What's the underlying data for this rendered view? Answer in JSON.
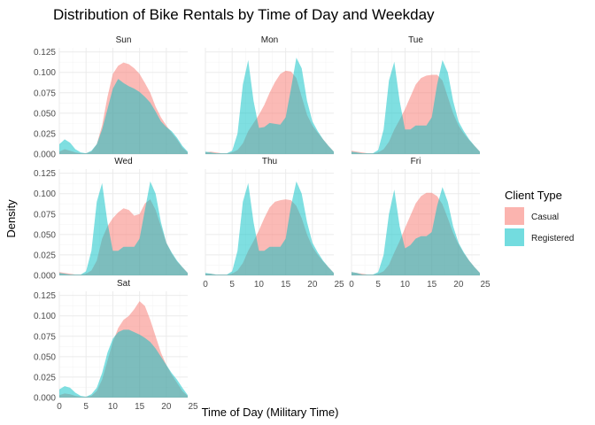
{
  "chart_data": {
    "type": "area",
    "title": "Distribution of Bike Rentals by Time of Day and Weekday",
    "xlabel": "Time of Day (Military Time)",
    "ylabel": "Density",
    "xlim": [
      0,
      24
    ],
    "ylim": [
      0,
      0.13
    ],
    "x_ticks": [
      0,
      5,
      10,
      15,
      20,
      25
    ],
    "y_ticks": [
      0.0,
      0.025,
      0.05,
      0.075,
      0.1,
      0.125
    ],
    "y_tick_labels": [
      "0.000",
      "0.025",
      "0.050",
      "0.075",
      "0.100",
      "0.125"
    ],
    "grid": true,
    "legend": {
      "title": "Client Type",
      "position": "right",
      "entries": [
        {
          "name": "Casual",
          "color": "#F8766D"
        },
        {
          "name": "Registered",
          "color": "#00BFC4"
        }
      ]
    },
    "x": [
      0,
      1,
      2,
      3,
      4,
      5,
      6,
      7,
      8,
      9,
      10,
      11,
      12,
      13,
      14,
      15,
      16,
      17,
      18,
      19,
      20,
      21,
      22,
      23,
      24
    ],
    "panels": [
      {
        "name": "Sun",
        "series": [
          {
            "name": "Casual",
            "values": [
              0.003,
              0.006,
              0.004,
              0.002,
              0.001,
              0.001,
              0.003,
              0.012,
              0.035,
              0.07,
              0.098,
              0.108,
              0.112,
              0.11,
              0.105,
              0.098,
              0.087,
              0.075,
              0.058,
              0.045,
              0.035,
              0.026,
              0.018,
              0.008,
              0.002
            ]
          },
          {
            "name": "Registered",
            "values": [
              0.012,
              0.018,
              0.014,
              0.006,
              0.002,
              0.001,
              0.004,
              0.012,
              0.03,
              0.055,
              0.08,
              0.092,
              0.087,
              0.083,
              0.08,
              0.076,
              0.07,
              0.063,
              0.052,
              0.04,
              0.033,
              0.028,
              0.02,
              0.01,
              0.003
            ]
          }
        ]
      },
      {
        "name": "Mon",
        "series": [
          {
            "name": "Casual",
            "values": [
              0.002,
              0.003,
              0.002,
              0.001,
              0.001,
              0.002,
              0.005,
              0.013,
              0.028,
              0.038,
              0.048,
              0.06,
              0.075,
              0.088,
              0.098,
              0.102,
              0.101,
              0.093,
              0.07,
              0.048,
              0.035,
              0.026,
              0.018,
              0.01,
              0.003
            ]
          },
          {
            "name": "Registered",
            "values": [
              0.003,
              0.002,
              0.001,
              0.001,
              0.001,
              0.004,
              0.025,
              0.085,
              0.115,
              0.065,
              0.032,
              0.033,
              0.038,
              0.037,
              0.036,
              0.045,
              0.08,
              0.118,
              0.105,
              0.065,
              0.04,
              0.028,
              0.018,
              0.01,
              0.003
            ]
          }
        ]
      },
      {
        "name": "Tue",
        "series": [
          {
            "name": "Casual",
            "values": [
              0.004,
              0.003,
              0.002,
              0.001,
              0.001,
              0.002,
              0.006,
              0.015,
              0.03,
              0.042,
              0.055,
              0.07,
              0.085,
              0.093,
              0.096,
              0.097,
              0.097,
              0.09,
              0.07,
              0.05,
              0.035,
              0.025,
              0.017,
              0.01,
              0.003
            ]
          },
          {
            "name": "Registered",
            "values": [
              0.003,
              0.002,
              0.001,
              0.001,
              0.001,
              0.005,
              0.03,
              0.09,
              0.113,
              0.065,
              0.03,
              0.03,
              0.035,
              0.035,
              0.035,
              0.045,
              0.085,
              0.115,
              0.1,
              0.065,
              0.04,
              0.028,
              0.018,
              0.01,
              0.003
            ]
          }
        ]
      },
      {
        "name": "Wed",
        "series": [
          {
            "name": "Casual",
            "values": [
              0.004,
              0.003,
              0.002,
              0.001,
              0.001,
              0.002,
              0.006,
              0.018,
              0.045,
              0.06,
              0.07,
              0.077,
              0.082,
              0.08,
              0.073,
              0.075,
              0.088,
              0.093,
              0.08,
              0.06,
              0.04,
              0.027,
              0.017,
              0.01,
              0.003
            ]
          },
          {
            "name": "Registered",
            "values": [
              0.003,
              0.002,
              0.001,
              0.001,
              0.001,
              0.005,
              0.03,
              0.09,
              0.113,
              0.065,
              0.03,
              0.03,
              0.035,
              0.035,
              0.035,
              0.045,
              0.08,
              0.115,
              0.1,
              0.065,
              0.04,
              0.028,
              0.018,
              0.01,
              0.003
            ]
          }
        ]
      },
      {
        "name": "Thu",
        "series": [
          {
            "name": "Casual",
            "values": [
              0.002,
              0.002,
              0.001,
              0.001,
              0.001,
              0.002,
              0.006,
              0.015,
              0.03,
              0.042,
              0.055,
              0.07,
              0.083,
              0.09,
              0.092,
              0.093,
              0.092,
              0.085,
              0.07,
              0.05,
              0.035,
              0.025,
              0.017,
              0.01,
              0.003
            ]
          },
          {
            "name": "Registered",
            "values": [
              0.003,
              0.002,
              0.001,
              0.001,
              0.001,
              0.005,
              0.03,
              0.09,
              0.113,
              0.065,
              0.03,
              0.03,
              0.035,
              0.035,
              0.035,
              0.045,
              0.085,
              0.115,
              0.1,
              0.065,
              0.04,
              0.028,
              0.018,
              0.01,
              0.003
            ]
          }
        ]
      },
      {
        "name": "Fri",
        "series": [
          {
            "name": "Casual",
            "values": [
              0.004,
              0.003,
              0.002,
              0.001,
              0.001,
              0.002,
              0.005,
              0.013,
              0.028,
              0.042,
              0.058,
              0.073,
              0.088,
              0.097,
              0.101,
              0.101,
              0.097,
              0.087,
              0.07,
              0.052,
              0.038,
              0.027,
              0.018,
              0.01,
              0.003
            ]
          },
          {
            "name": "Registered",
            "values": [
              0.004,
              0.003,
              0.001,
              0.001,
              0.001,
              0.004,
              0.025,
              0.075,
              0.105,
              0.06,
              0.033,
              0.037,
              0.045,
              0.048,
              0.048,
              0.053,
              0.085,
              0.108,
              0.09,
              0.06,
              0.04,
              0.028,
              0.018,
              0.01,
              0.003
            ]
          }
        ]
      },
      {
        "name": "Sat",
        "series": [
          {
            "name": "Casual",
            "values": [
              0.003,
              0.005,
              0.004,
              0.002,
              0.001,
              0.001,
              0.002,
              0.008,
              0.022,
              0.045,
              0.068,
              0.085,
              0.095,
              0.1,
              0.108,
              0.118,
              0.112,
              0.095,
              0.075,
              0.055,
              0.04,
              0.028,
              0.018,
              0.008,
              0.002
            ]
          },
          {
            "name": "Registered",
            "values": [
              0.01,
              0.014,
              0.012,
              0.006,
              0.002,
              0.001,
              0.004,
              0.012,
              0.03,
              0.055,
              0.072,
              0.08,
              0.083,
              0.083,
              0.08,
              0.077,
              0.073,
              0.068,
              0.06,
              0.05,
              0.04,
              0.03,
              0.022,
              0.012,
              0.003
            ]
          }
        ]
      }
    ]
  }
}
